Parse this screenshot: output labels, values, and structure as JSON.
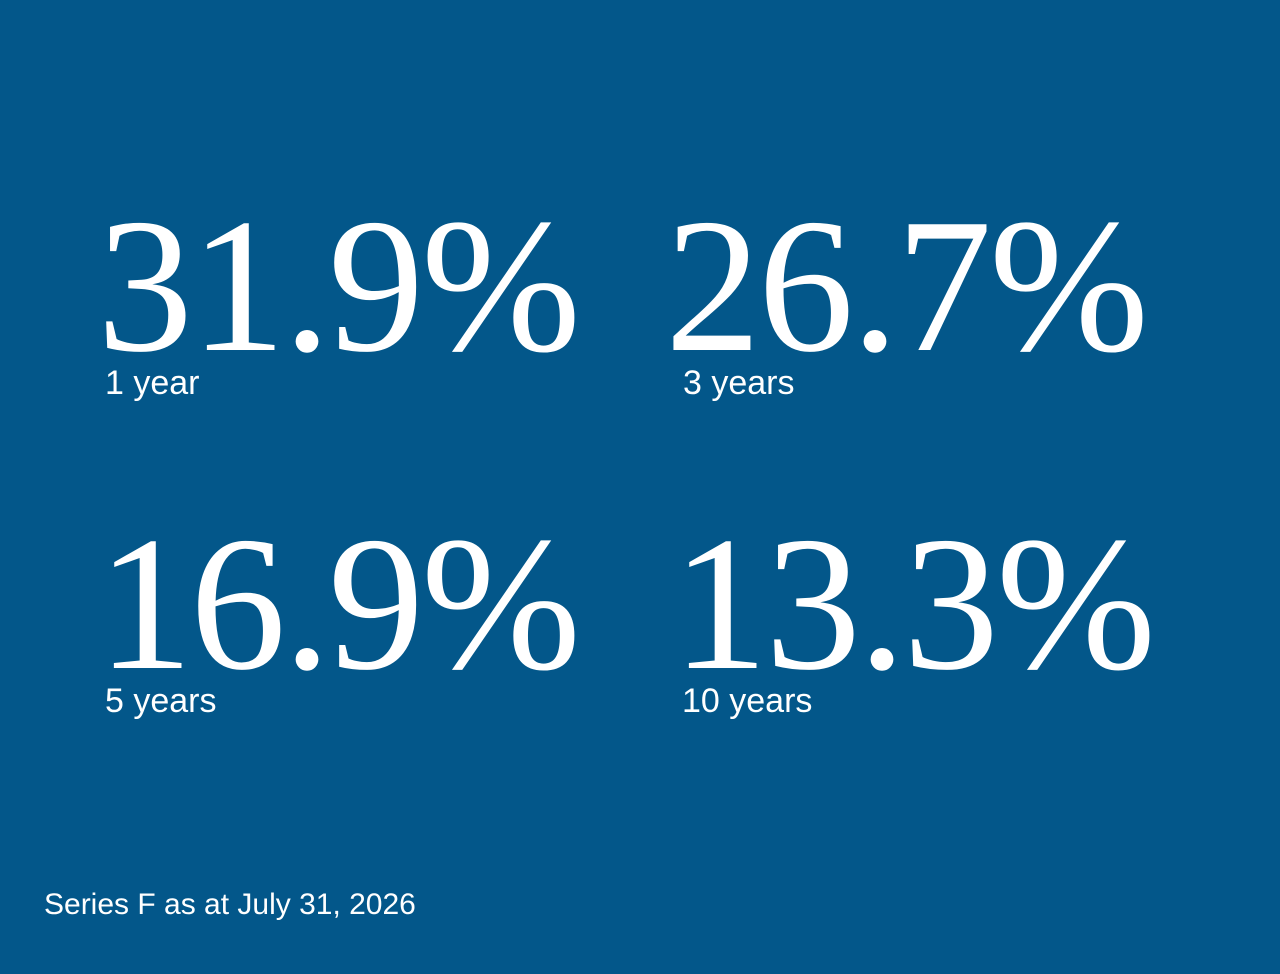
{
  "stats": [
    {
      "value": "31.9%",
      "label": "1 year"
    },
    {
      "value": "26.7%",
      "label": "3 years"
    },
    {
      "value": "16.9%",
      "label": "5 years"
    },
    {
      "value": "13.3%",
      "label": "10 years"
    }
  ],
  "footer": "Series F as at July 31, 2026"
}
